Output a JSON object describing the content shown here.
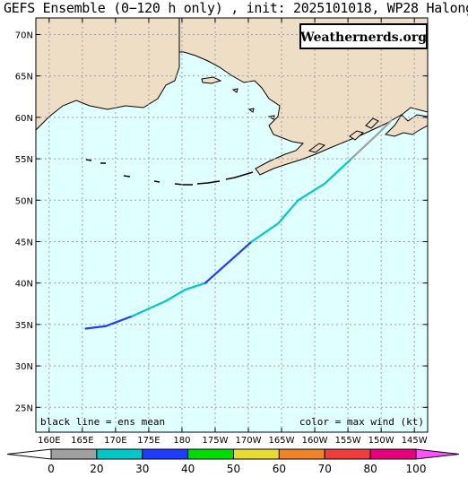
{
  "title": "GEFS Ensemble (0−120 h only) , init: 2025101018, WP28 Halong",
  "logo_text": "Weathernerds.org",
  "notes": {
    "left": "black line = ens mean",
    "right": "color = max wind (kt)"
  },
  "axes": {
    "lat_labels": [
      "70N",
      "65N",
      "60N",
      "55N",
      "50N",
      "45N",
      "40N",
      "35N",
      "30N",
      "25N"
    ],
    "lat_values": [
      70,
      65,
      60,
      55,
      50,
      45,
      40,
      35,
      30,
      25
    ],
    "lon_labels": [
      "160E",
      "165E",
      "170E",
      "175E",
      "180",
      "175W",
      "170W",
      "165W",
      "160W",
      "155W",
      "150W",
      "145W"
    ],
    "lon_values": [
      160,
      165,
      170,
      175,
      180,
      185,
      190,
      195,
      200,
      205,
      210,
      215
    ],
    "lat_range": [
      22,
      72
    ],
    "lon_range": [
      158,
      217
    ],
    "grid": true
  },
  "colorbar": {
    "labels": [
      "0",
      "20",
      "30",
      "40",
      "50",
      "60",
      "70",
      "80",
      "100"
    ],
    "colors": [
      "#a0a0a0",
      "#00c8c8",
      "#1e3cff",
      "#00dc00",
      "#e6dc32",
      "#f08228",
      "#f03c3c",
      "#e6007c",
      "#ff50ff"
    ]
  },
  "track": [
    {
      "lon": 165.5,
      "lat": 34.5,
      "wind_color": "#00dc00"
    },
    {
      "lon": 168.5,
      "lat": 34.8,
      "wind_color": "#1e3cff"
    },
    {
      "lon": 172.5,
      "lat": 36.0,
      "wind_color": "#1e3cff"
    },
    {
      "lon": 177.5,
      "lat": 37.8,
      "wind_color": "#00c8c8"
    },
    {
      "lon": 180.5,
      "lat": 39.2,
      "wind_color": "#00c8c8"
    },
    {
      "lon": 183.5,
      "lat": 40.0,
      "wind_color": "#00c8c8"
    },
    {
      "lon": 190.5,
      "lat": 45.0,
      "wind_color": "#1e3cff"
    },
    {
      "lon": 194.5,
      "lat": 47.2,
      "wind_color": "#00c8c8"
    },
    {
      "lon": 197.5,
      "lat": 50.0,
      "wind_color": "#00c8c8"
    },
    {
      "lon": 201.5,
      "lat": 52.0,
      "wind_color": "#00c8c8"
    },
    {
      "lon": 205.5,
      "lat": 55.0,
      "wind_color": "#00c8c8"
    },
    {
      "lon": 209.5,
      "lat": 58.0,
      "wind_color": "#a0a0a0"
    },
    {
      "lon": 211.5,
      "lat": 59.6,
      "wind_color": "#a0a0a0"
    }
  ],
  "colors": {
    "ocean": "#e0ffff",
    "land": "#eedec6",
    "grid": "#a0a0a0"
  }
}
